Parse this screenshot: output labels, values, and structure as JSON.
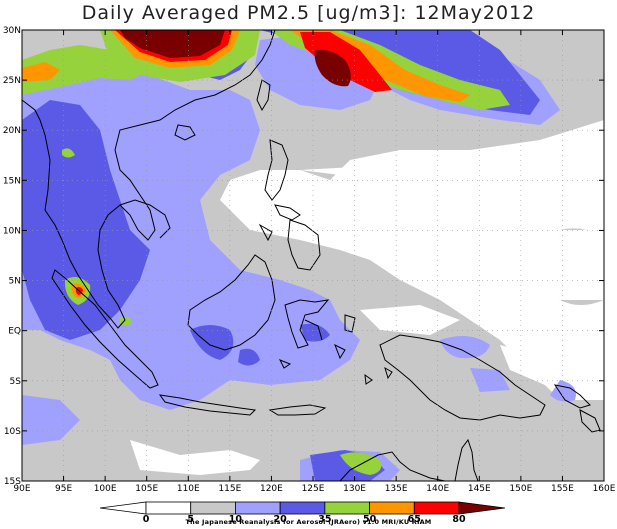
{
  "title": "Daily Averaged PM2.5 [ug/m3]: 12May2012",
  "credit": "The Japanese Reanalysis for Aerosol (JRAero) v1.0 MRI/KU RIAM",
  "axes": {
    "lon_labels": [
      "90E",
      "95E",
      "100E",
      "105E",
      "110E",
      "115E",
      "120E",
      "125E",
      "130E",
      "135E",
      "140E",
      "145E",
      "150E",
      "155E",
      "160E"
    ],
    "lat_labels": [
      "30N",
      "25N",
      "20N",
      "15N",
      "10N",
      "5N",
      "EQ",
      "5S",
      "10S",
      "15S"
    ]
  },
  "colorbar": {
    "levels": [
      "0",
      "5",
      "10",
      "20",
      "35",
      "50",
      "65",
      "80"
    ],
    "colors": [
      "#ffffff",
      "#ffffff",
      "#c8c8c8",
      "#a0a0ff",
      "#5a5ae6",
      "#96d23c",
      "#ff9600",
      "#ff0000",
      "#780000"
    ]
  },
  "map": {
    "extent": {
      "lon": [
        90,
        160
      ],
      "lat": [
        -15,
        30
      ]
    },
    "background": "#ffffff",
    "grid": "dotted"
  }
}
